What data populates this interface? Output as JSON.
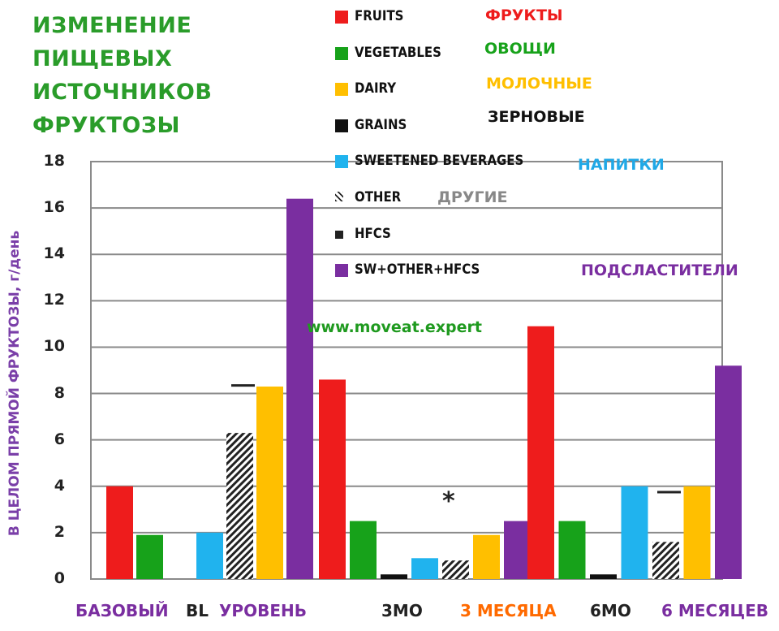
{
  "title_lines": [
    "ИЗМЕНЕНИЕ",
    "ПИЩЕВЫХ",
    "ИСТОЧНИКОВ",
    "ФРУКТОЗЫ"
  ],
  "website": "www.moveat.expert",
  "asterisk": "*",
  "colors": {
    "fruits": "#ee1c1c",
    "vegetables": "#17a21a",
    "dairy": "#ffbf00",
    "grains": "#111111",
    "sweetened_beverages": "#20b3ee",
    "other": "hatched",
    "hfcs": "#222222",
    "sw_other_hfcs": "#7a2ea0",
    "title": "#2a9c2a",
    "ylabel": "#7a3fa8"
  },
  "legend": [
    {
      "key": "fruits",
      "label": "FRUITS",
      "label_ru": "ФРУКТЫ",
      "ru_color": "#ee1c1c"
    },
    {
      "key": "vegetables",
      "label": "VEGETABLES",
      "label_ru": "ОВОЩИ",
      "ru_color": "#17a21a"
    },
    {
      "key": "dairy",
      "label": "DAIRY",
      "label_ru": "МОЛОЧНЫЕ",
      "ru_color": "#ffbf00"
    },
    {
      "key": "grains",
      "label": "GRAINS",
      "label_ru": "ЗЕРНОВЫЕ",
      "ru_color": "#111111"
    },
    {
      "key": "sweetened_beverages",
      "label": "SWEETENED BEVERAGES",
      "label_ru": "НАПИТКИ",
      "ru_color": "#20a8e6"
    },
    {
      "key": "other",
      "label": "OTHER",
      "label_ru": "ДРУГИЕ",
      "ru_color": "#888888"
    },
    {
      "key": "hfcs",
      "label": "HFCS",
      "label_ru": "",
      "ru_color": "#111111"
    },
    {
      "key": "sw_other_hfcs",
      "label": "SW+OTHER+HFCS",
      "label_ru": "ПОДСЛАСТИТЕЛИ",
      "ru_color": "#7a2ea0"
    }
  ],
  "x_labels": [
    {
      "text": "БАЗОВЫЙ",
      "color": "#7a2ea0"
    },
    {
      "text": "BL",
      "color": "#222222"
    },
    {
      "text": "УРОВЕНЬ",
      "color": "#7a2ea0"
    },
    {
      "text": "3MO",
      "color": "#222222"
    },
    {
      "text": "3 МЕСЯЦА",
      "color": "#ff6a00"
    },
    {
      "text": "6MO",
      "color": "#222222"
    },
    {
      "text": "6 МЕСЯЦЕВ",
      "color": "#7a2ea0"
    }
  ],
  "chart_data": {
    "type": "bar",
    "title": "ИЗМЕНЕНИЕ ПИЩЕВЫХ ИСТОЧНИКОВ ФРУКТОЗЫ",
    "ylabel": "В ЦЕЛОМ ПРЯМОЙ ФРУКТОЗЫ, г/день",
    "xlabel": "",
    "categories": [
      "BL",
      "3MO",
      "6MO"
    ],
    "ylim": [
      0,
      18
    ],
    "yticks": [
      0,
      2,
      4,
      6,
      8,
      10,
      12,
      14,
      16,
      18
    ],
    "grid": true,
    "legend_position": "top-right",
    "series": [
      {
        "name": "FRUITS",
        "key": "fruits",
        "values": [
          4.0,
          8.6,
          10.9
        ]
      },
      {
        "name": "VEGETABLES",
        "key": "vegetables",
        "values": [
          1.9,
          2.5,
          2.5
        ]
      },
      {
        "name": "GRAINS",
        "key": "grains",
        "values": [
          0,
          0.2,
          0.2
        ]
      },
      {
        "name": "SWEETENED BEVERAGES",
        "key": "sweetened_beverages",
        "values": [
          2.0,
          0.9,
          4.0
        ]
      },
      {
        "name": "OTHER",
        "key": "other",
        "values": [
          6.3,
          0.8,
          1.6
        ]
      },
      {
        "name": "DAIRY",
        "key": "dairy",
        "values": [
          8.3,
          1.9,
          4.0
        ]
      },
      {
        "name": "HFCS",
        "key": "hfcs",
        "values": [
          8.4,
          0,
          3.8
        ]
      },
      {
        "name": "SW+OTHER+HFCS",
        "key": "sw_other_hfcs",
        "values": [
          16.4,
          2.5,
          9.2
        ]
      }
    ]
  }
}
